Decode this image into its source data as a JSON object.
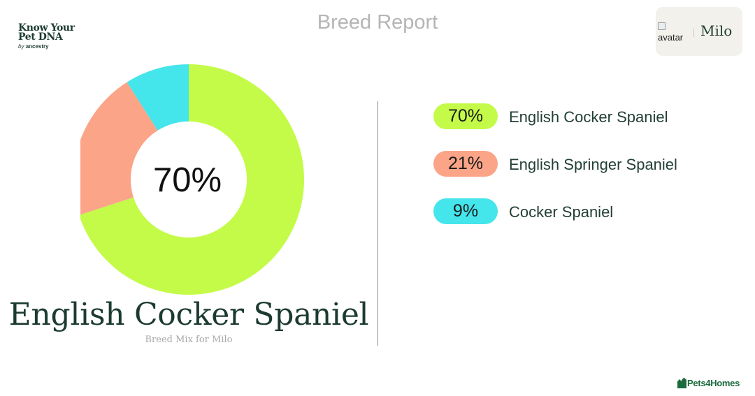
{
  "brand": {
    "line1": "Know Your",
    "line2": "Pet DNA",
    "by": "by",
    "partner": "ancestry"
  },
  "header": {
    "title": "Breed Report"
  },
  "user": {
    "avatar_alt": "avatar",
    "name": "Milo"
  },
  "chart_data": {
    "type": "pie",
    "title": "",
    "center_label": "70%",
    "categories": [
      "English Cocker Spaniel",
      "English Springer Spaniel",
      "Cocker Spaniel"
    ],
    "values": [
      70,
      21,
      9
    ],
    "unit": "%",
    "colors": [
      "#c3fb48",
      "#fba487",
      "#44e5eb"
    ],
    "hole_color": "#ffffff",
    "start_angle_deg": 0,
    "direction": "clockwise",
    "legend_position": "right"
  },
  "main": {
    "breed_title": "English Cocker Spaniel",
    "breed_subtitle": "Breed Mix for Milo"
  },
  "legend": [
    {
      "percent": "70%",
      "label": "English Cocker Spaniel",
      "color": "#c3fb48"
    },
    {
      "percent": "21%",
      "label": "English Springer Spaniel",
      "color": "#fba487"
    },
    {
      "percent": "9%",
      "label": "Cocker Spaniel",
      "color": "#44e5eb"
    }
  ],
  "footer": {
    "logo_text": "Pets4Homes",
    "icon": "paw-icon"
  }
}
